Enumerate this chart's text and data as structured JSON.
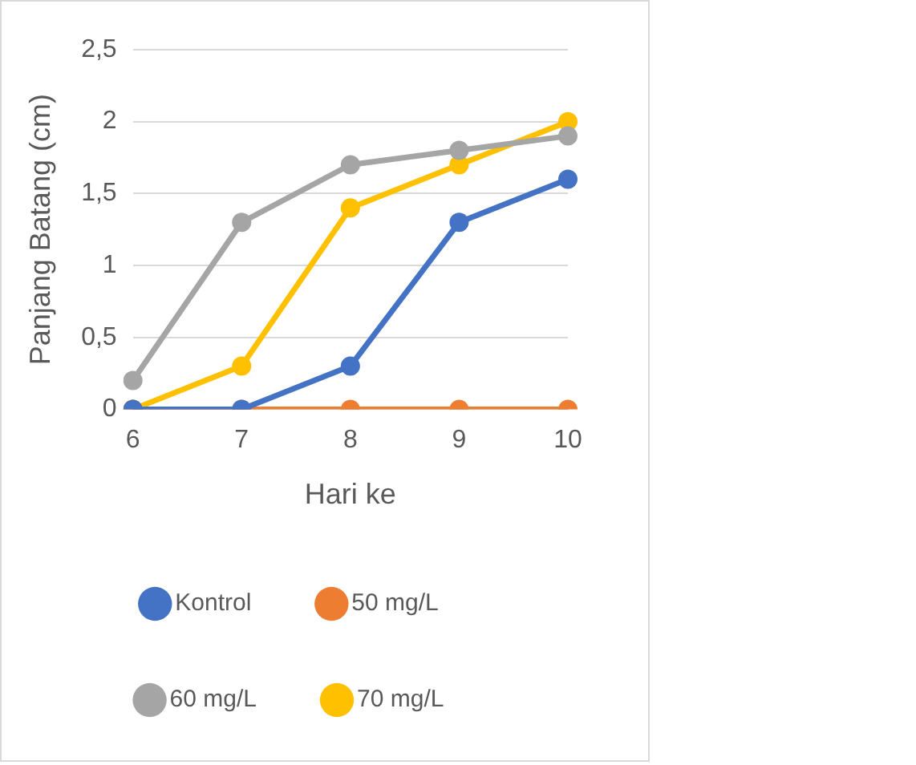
{
  "chart_data": {
    "type": "line",
    "xlabel": "Hari ke",
    "ylabel": "Panjang Batang (cm)",
    "categories": [
      "6",
      "7",
      "8",
      "9",
      "10"
    ],
    "series": [
      {
        "name": "Kontrol",
        "color": "#4472c4",
        "values": [
          0,
          0,
          0.3,
          1.3,
          1.6
        ]
      },
      {
        "name": "50 mg/L",
        "color": "#ed7d31",
        "values": [
          0,
          0,
          0,
          0,
          0
        ]
      },
      {
        "name": "60 mg/L",
        "color": "#a5a5a5",
        "values": [
          0.2,
          1.3,
          1.7,
          1.8,
          1.9
        ]
      },
      {
        "name": "70 mg/L",
        "color": "#ffc000",
        "values": [
          0,
          0.3,
          1.4,
          1.7,
          2.0
        ]
      }
    ],
    "ylim": [
      0,
      2.5
    ],
    "yticks": [
      0,
      {
        "value": 0.5,
        "label": "0,5"
      },
      1,
      {
        "value": 1.5,
        "label": "1,5"
      },
      2,
      {
        "value": 2.5,
        "label": "2,5"
      }
    ],
    "grid": "y",
    "legend": "bottom",
    "marker": "circle",
    "line_style": "solid"
  }
}
